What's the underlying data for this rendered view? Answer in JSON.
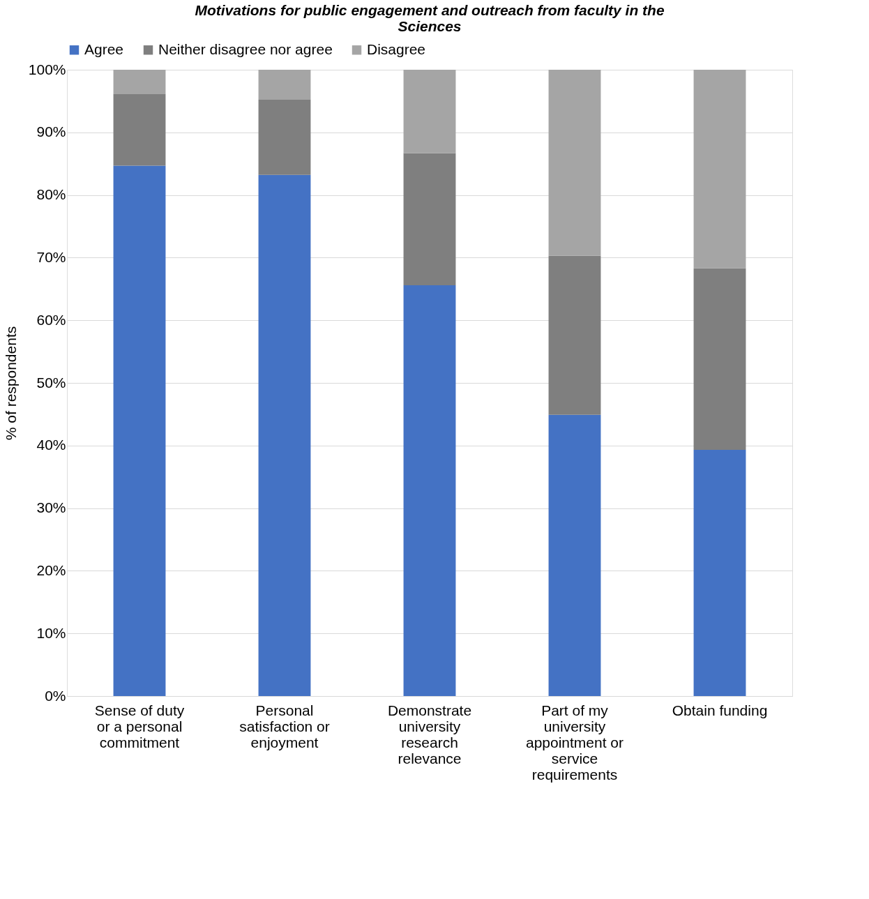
{
  "chart_data": {
    "type": "bar",
    "stacked": true,
    "title": "Motivations for public engagement and outreach from faculty in the Sciences",
    "ylabel": "% of respondents",
    "categories": [
      "Sense of duty or a personal commitment",
      "Personal satisfaction or enjoyment",
      "Demonstrate university research relevance",
      "Part of my university appointment or service requirements",
      "Obtain funding"
    ],
    "series": [
      {
        "name": "Agree",
        "color": "#4472c4",
        "values": [
          84.7,
          83.2,
          65.6,
          44.9,
          39.3
        ]
      },
      {
        "name": "Neither disagree nor agree",
        "color": "#7f7f7f",
        "values": [
          11.4,
          12.0,
          21.1,
          25.4,
          29.0
        ]
      },
      {
        "name": "Disagree",
        "color": "#a5a5a5",
        "values": [
          3.9,
          4.8,
          13.3,
          29.7,
          31.7
        ]
      }
    ],
    "ylim": [
      0,
      100
    ],
    "yticks": [
      {
        "value": 0,
        "label": "0%"
      },
      {
        "value": 10,
        "label": "10%"
      },
      {
        "value": 20,
        "label": "20%"
      },
      {
        "value": 30,
        "label": "30%"
      },
      {
        "value": 40,
        "label": "40%"
      },
      {
        "value": 50,
        "label": "50%"
      },
      {
        "value": 60,
        "label": "60%"
      },
      {
        "value": 70,
        "label": "70%"
      },
      {
        "value": 80,
        "label": "80%"
      },
      {
        "value": 90,
        "label": "90%"
      },
      {
        "value": 100,
        "label": "100%"
      }
    ],
    "grid": "y",
    "legend": "top"
  }
}
